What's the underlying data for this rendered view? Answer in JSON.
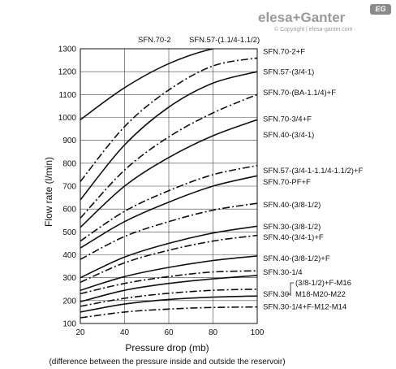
{
  "brand": {
    "name": "elesa+Ganter",
    "copyright": "© Copyright | elesa-ganter.com",
    "badge": "EG"
  },
  "chart_data": {
    "type": "line",
    "title": "",
    "xlabel": "Pressure drop (mb)",
    "xlabel_note": "(difference between the pressure inside and outside the reservoir)",
    "ylabel": "Flow rate (l/min)",
    "xlim": [
      20,
      100
    ],
    "ylim": [
      100,
      1300
    ],
    "xticks": [
      20,
      40,
      60,
      80,
      100
    ],
    "yticks": [
      100,
      200,
      300,
      400,
      500,
      600,
      700,
      800,
      900,
      1000,
      1100,
      1200,
      1300
    ],
    "grid": true,
    "top_labels": [
      "SFN.70-2",
      "SFN.57-(1.1/4-1.1/2)"
    ],
    "bracket_group": {
      "label": "SFN.30",
      "lines": [
        "(3/8-1/2)+F-M16",
        "M18-M20-M22"
      ]
    },
    "series": [
      {
        "name": "SFN.70-2+F",
        "style": "solid",
        "x": [
          20,
          40,
          60,
          80,
          100
        ],
        "y": [
          990,
          1130,
          1235,
          1300,
          1320
        ]
      },
      {
        "name": "SFN.57-(3/4-1)",
        "style": "dashdot",
        "x": [
          20,
          40,
          60,
          80,
          100
        ],
        "y": [
          720,
          960,
          1120,
          1225,
          1260
        ]
      },
      {
        "name": "SFN.70-(BA-1.1/4)+F",
        "style": "solid",
        "x": [
          20,
          40,
          60,
          80,
          100
        ],
        "y": [
          640,
          880,
          1045,
          1150,
          1200
        ]
      },
      {
        "name": "SFN.70-3/4+F",
        "style": "dashdot",
        "x": [
          20,
          40,
          60,
          80,
          100
        ],
        "y": [
          560,
          770,
          915,
          1020,
          1100
        ]
      },
      {
        "name": "SFN.40-(3/4-1)",
        "style": "solid",
        "x": [
          20,
          40,
          60,
          80,
          100
        ],
        "y": [
          520,
          700,
          825,
          920,
          990
        ]
      },
      {
        "name": "SFN.57-(3/4-1-1.1/4-1.1/2)+F",
        "style": "dashdot",
        "x": [
          20,
          40,
          60,
          80,
          100
        ],
        "y": [
          460,
          590,
          680,
          750,
          790
        ]
      },
      {
        "name": "SFN.70-PF+F",
        "style": "solid",
        "x": [
          20,
          40,
          60,
          80,
          100
        ],
        "y": [
          430,
          545,
          630,
          700,
          745
        ]
      },
      {
        "name": "SFN.40-(3/8-1/2)",
        "style": "dashdot",
        "x": [
          20,
          40,
          60,
          80,
          100
        ],
        "y": [
          380,
          480,
          545,
          595,
          625
        ]
      },
      {
        "name": "SFN.30-(3/8-1/2)",
        "style": "solid",
        "x": [
          20,
          40,
          60,
          80,
          100
        ],
        "y": [
          300,
          390,
          450,
          495,
          525
        ]
      },
      {
        "name": "SFN.40-(3/4-1)+F",
        "style": "dashdot",
        "x": [
          20,
          40,
          60,
          80,
          100
        ],
        "y": [
          280,
          365,
          420,
          460,
          485
        ]
      },
      {
        "name": "SFN.40-(3/8-1/2)+F",
        "style": "solid",
        "x": [
          20,
          40,
          60,
          80,
          100
        ],
        "y": [
          245,
          305,
          345,
          375,
          395
        ]
      },
      {
        "name": "SFN.30-1/4",
        "style": "dashdot",
        "x": [
          20,
          40,
          60,
          80,
          100
        ],
        "y": [
          230,
          275,
          305,
          325,
          330
        ]
      },
      {
        "name": "SFN.30-(3/8-1/2)+F-M16",
        "style": "solid",
        "x": [
          20,
          40,
          60,
          80,
          100
        ],
        "y": [
          195,
          245,
          275,
          295,
          310
        ]
      },
      {
        "name": "SFN.30-M18-M20-M22",
        "style": "dashdot",
        "x": [
          20,
          40,
          60,
          80,
          100
        ],
        "y": [
          175,
          210,
          232,
          245,
          250
        ]
      },
      {
        "name": "SFN.30-1/4+F-M12-M14",
        "style": "solid",
        "x": [
          20,
          40,
          60,
          80,
          100
        ],
        "y": [
          150,
          185,
          205,
          215,
          220
        ]
      },
      {
        "name": "SFN.30-1/4+F-M12-M14 (dash)",
        "style": "dashdot",
        "x": [
          20,
          40,
          60,
          80,
          100
        ],
        "y": [
          125,
          150,
          163,
          170,
          172
        ]
      }
    ],
    "right_labels": [
      {
        "text": "SFN.70-2+F",
        "y": 1290
      },
      {
        "text": "SFN.57-(3/4-1)",
        "y": 1200
      },
      {
        "text": "SFN.70-(BA-1.1/4)+F",
        "y": 1110
      },
      {
        "text": "SFN.70-3/4+F",
        "y": 995
      },
      {
        "text": "SFN.40-(3/4-1)",
        "y": 925
      },
      {
        "text": "SFN.57-(3/4-1-1.1/4-1.1/2)+F",
        "y": 770
      },
      {
        "text": "SFN.70-PF+F",
        "y": 720
      },
      {
        "text": "SFN.40-(3/8-1/2)",
        "y": 620
      },
      {
        "text": "SFN.30-(3/8-1/2)",
        "y": 525
      },
      {
        "text": "SFN.40-(3/4-1)+F",
        "y": 478
      },
      {
        "text": "SFN.40-(3/8-1/2)+F",
        "y": 385
      },
      {
        "text": "SFN.30-1/4",
        "y": 325
      },
      {
        "text": "SFN.30-1/4+F-M12-M14",
        "y": 175
      }
    ]
  }
}
